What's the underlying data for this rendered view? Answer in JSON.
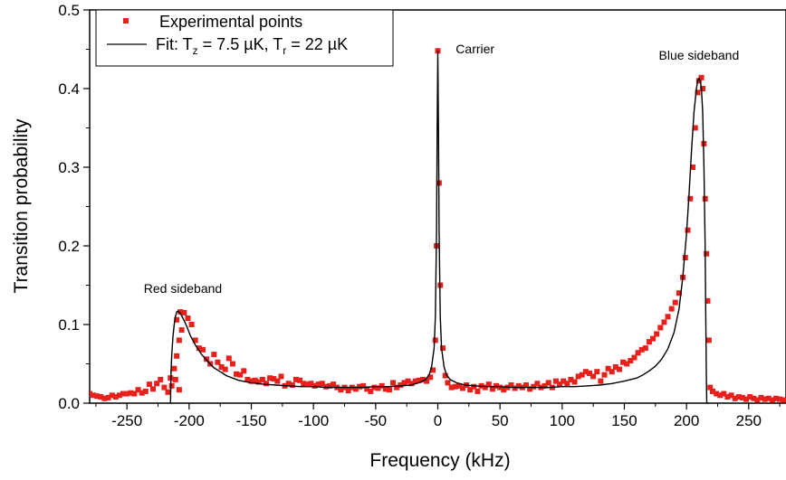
{
  "chart_data": {
    "type": "scatter",
    "title": "",
    "xlabel": "Frequency (kHz)",
    "ylabel": "Transition probability",
    "xlim": [
      -280,
      280
    ],
    "ylim": [
      0,
      0.5
    ],
    "xticks": [
      -250,
      -200,
      -150,
      -100,
      -50,
      0,
      50,
      100,
      150,
      200,
      250
    ],
    "xtick_labels": [
      "-250",
      "-200",
      "-150",
      "-100",
      "-50",
      "0",
      "50",
      "100",
      "150",
      "200",
      "250"
    ],
    "yticks": [
      0,
      0.1,
      0.2,
      0.3,
      0.4,
      0.5
    ],
    "ytick_labels": [
      "0.0",
      "0.1",
      "0.2",
      "0.3",
      "0.4",
      "0.5"
    ],
    "grid": false,
    "legend_position": "top-left",
    "colors": {
      "points": "#e8201b",
      "fit": "#000000"
    },
    "legend": {
      "points": "Experimental points",
      "fit_prefix": "Fit: T",
      "fit_sub1": "z",
      "fit_mid": " = 7.5 µK, T",
      "fit_sub2": "r",
      "fit_end": "  = 22 µK"
    },
    "annotations": [
      {
        "text": "Carrier",
        "x": 30,
        "y": 0.445
      },
      {
        "text": "Blue sideband",
        "x": 210,
        "y": 0.437
      },
      {
        "text": "Red sideband",
        "x": -205,
        "y": 0.14
      }
    ],
    "series": [
      {
        "name": "Experimental points",
        "type": "scatter",
        "points": [
          [
            -280,
            0.012
          ],
          [
            -277,
            0.01
          ],
          [
            -274,
            0.009
          ],
          [
            -271,
            0.008
          ],
          [
            -268,
            0.006
          ],
          [
            -265,
            0.007
          ],
          [
            -262,
            0.01
          ],
          [
            -259,
            0.008
          ],
          [
            -256,
            0.01
          ],
          [
            -253,
            0.012
          ],
          [
            -250,
            0.012
          ],
          [
            -247,
            0.013
          ],
          [
            -244,
            0.012
          ],
          [
            -241,
            0.017
          ],
          [
            -238,
            0.013
          ],
          [
            -235,
            0.015
          ],
          [
            -232,
            0.024
          ],
          [
            -229,
            0.018
          ],
          [
            -226,
            0.025
          ],
          [
            -223,
            0.03
          ],
          [
            -220,
            0.02
          ],
          [
            -217,
            0.014
          ],
          [
            -214,
            0.022
          ],
          [
            -211,
            0.03
          ],
          [
            -208,
            0.017
          ],
          [
            -215,
            0.032
          ],
          [
            -212,
            0.044
          ],
          [
            -210,
            0.06
          ],
          [
            -208,
            0.08
          ],
          [
            -206,
            0.093
          ],
          [
            -210,
            0.106
          ],
          [
            -207,
            0.116
          ],
          [
            -204,
            0.115
          ],
          [
            -201,
            0.108
          ],
          [
            -198,
            0.1
          ],
          [
            -195,
            0.08
          ],
          [
            -192,
            0.07
          ],
          [
            -189,
            0.068
          ],
          [
            -186,
            0.056
          ],
          [
            -183,
            0.05
          ],
          [
            -180,
            0.062
          ],
          [
            -177,
            0.052
          ],
          [
            -174,
            0.046
          ],
          [
            -171,
            0.043
          ],
          [
            -168,
            0.057
          ],
          [
            -165,
            0.05
          ],
          [
            -162,
            0.037
          ],
          [
            -159,
            0.036
          ],
          [
            -156,
            0.041
          ],
          [
            -153,
            0.03
          ],
          [
            -150,
            0.028
          ],
          [
            -147,
            0.029
          ],
          [
            -144,
            0.027
          ],
          [
            -141,
            0.03
          ],
          [
            -138,
            0.025
          ],
          [
            -135,
            0.032
          ],
          [
            -132,
            0.031
          ],
          [
            -129,
            0.028
          ],
          [
            -126,
            0.034
          ],
          [
            -123,
            0.022
          ],
          [
            -120,
            0.025
          ],
          [
            -117,
            0.023
          ],
          [
            -114,
            0.03
          ],
          [
            -111,
            0.029
          ],
          [
            -108,
            0.025
          ],
          [
            -105,
            0.024
          ],
          [
            -102,
            0.025
          ],
          [
            -99,
            0.022
          ],
          [
            -96,
            0.024
          ],
          [
            -93,
            0.025
          ],
          [
            -90,
            0.021
          ],
          [
            -87,
            0.022
          ],
          [
            -84,
            0.024
          ],
          [
            -81,
            0.02
          ],
          [
            -78,
            0.017
          ],
          [
            -75,
            0.02
          ],
          [
            -72,
            0.016
          ],
          [
            -69,
            0.02
          ],
          [
            -66,
            0.018
          ],
          [
            -63,
            0.021
          ],
          [
            -60,
            0.022
          ],
          [
            -57,
            0.018
          ],
          [
            -54,
            0.015
          ],
          [
            -51,
            0.02
          ],
          [
            -48,
            0.019
          ],
          [
            -45,
            0.022
          ],
          [
            -42,
            0.018
          ],
          [
            -39,
            0.017
          ],
          [
            -36,
            0.026
          ],
          [
            -33,
            0.02
          ],
          [
            -30,
            0.023
          ],
          [
            -27,
            0.026
          ],
          [
            -24,
            0.028
          ],
          [
            -21,
            0.025
          ],
          [
            -18,
            0.028
          ],
          [
            -15,
            0.029
          ],
          [
            -12,
            0.03
          ],
          [
            -9,
            0.028
          ],
          [
            -6,
            0.033
          ],
          [
            -4,
            0.042
          ],
          [
            -2,
            0.08
          ],
          [
            -1,
            0.2
          ],
          [
            0,
            0.448
          ],
          [
            1,
            0.28
          ],
          [
            2,
            0.15
          ],
          [
            4,
            0.07
          ],
          [
            6,
            0.035
          ],
          [
            8,
            0.026
          ],
          [
            11,
            0.02
          ],
          [
            14,
            0.021
          ],
          [
            17,
            0.022
          ],
          [
            20,
            0.019
          ],
          [
            23,
            0.023
          ],
          [
            26,
            0.017
          ],
          [
            29,
            0.021
          ],
          [
            32,
            0.015
          ],
          [
            35,
            0.022
          ],
          [
            38,
            0.02
          ],
          [
            41,
            0.024
          ],
          [
            44,
            0.018
          ],
          [
            47,
            0.022
          ],
          [
            50,
            0.02
          ],
          [
            53,
            0.017
          ],
          [
            56,
            0.02
          ],
          [
            59,
            0.023
          ],
          [
            62,
            0.019
          ],
          [
            65,
            0.022
          ],
          [
            68,
            0.02
          ],
          [
            71,
            0.023
          ],
          [
            74,
            0.018
          ],
          [
            77,
            0.021
          ],
          [
            80,
            0.025
          ],
          [
            83,
            0.02
          ],
          [
            86,
            0.022
          ],
          [
            89,
            0.026
          ],
          [
            92,
            0.02
          ],
          [
            95,
            0.028
          ],
          [
            98,
            0.024
          ],
          [
            101,
            0.028
          ],
          [
            104,
            0.025
          ],
          [
            107,
            0.03
          ],
          [
            110,
            0.027
          ],
          [
            113,
            0.034
          ],
          [
            116,
            0.036
          ],
          [
            119,
            0.04
          ],
          [
            122,
            0.038
          ],
          [
            125,
            0.034
          ],
          [
            128,
            0.04
          ],
          [
            131,
            0.028
          ],
          [
            134,
            0.036
          ],
          [
            137,
            0.044
          ],
          [
            140,
            0.04
          ],
          [
            143,
            0.046
          ],
          [
            146,
            0.043
          ],
          [
            149,
            0.052
          ],
          [
            152,
            0.05
          ],
          [
            155,
            0.054
          ],
          [
            158,
            0.058
          ],
          [
            161,
            0.064
          ],
          [
            164,
            0.068
          ],
          [
            167,
            0.07
          ],
          [
            170,
            0.078
          ],
          [
            173,
            0.082
          ],
          [
            176,
            0.088
          ],
          [
            179,
            0.096
          ],
          [
            182,
            0.103
          ],
          [
            185,
            0.11
          ],
          [
            188,
            0.12
          ],
          [
            191,
            0.128
          ],
          [
            194,
            0.14
          ],
          [
            197,
            0.16
          ],
          [
            199,
            0.185
          ],
          [
            201,
            0.22
          ],
          [
            203,
            0.26
          ],
          [
            205,
            0.3
          ],
          [
            207,
            0.35
          ],
          [
            209,
            0.395
          ],
          [
            210,
            0.41
          ],
          [
            212,
            0.414
          ],
          [
            213,
            0.4
          ],
          [
            214,
            0.33
          ],
          [
            215,
            0.26
          ],
          [
            216,
            0.19
          ],
          [
            217,
            0.13
          ],
          [
            218,
            0.08
          ],
          [
            219,
            0.02
          ],
          [
            221,
            0.015
          ],
          [
            224,
            0.012
          ],
          [
            227,
            0.01
          ],
          [
            230,
            0.012
          ],
          [
            233,
            0.008
          ],
          [
            236,
            0.01
          ],
          [
            239,
            0.006
          ],
          [
            242,
            0.008
          ],
          [
            245,
            0.007
          ],
          [
            248,
            0.005
          ],
          [
            251,
            0.008
          ],
          [
            254,
            0.006
          ],
          [
            257,
            0.004
          ],
          [
            260,
            0.007
          ],
          [
            263,
            0.005
          ],
          [
            266,
            0.006
          ],
          [
            269,
            0.004
          ],
          [
            272,
            0.006
          ],
          [
            275,
            0.005
          ],
          [
            278,
            0.004
          ]
        ]
      },
      {
        "name": "Fit: Tz = 7.5 µK, Tr = 22 µK",
        "type": "line",
        "points": [
          [
            -216,
            0.0
          ],
          [
            -215,
            0.0
          ],
          [
            -214.5,
            0.04
          ],
          [
            -214,
            0.06
          ],
          [
            -213,
            0.085
          ],
          [
            -212,
            0.1
          ],
          [
            -211,
            0.11
          ],
          [
            -210,
            0.116
          ],
          [
            -209,
            0.117
          ],
          [
            -207,
            0.114
          ],
          [
            -205,
            0.108
          ],
          [
            -202,
            0.098
          ],
          [
            -199,
            0.086
          ],
          [
            -195,
            0.074
          ],
          [
            -190,
            0.062
          ],
          [
            -185,
            0.053
          ],
          [
            -180,
            0.045
          ],
          [
            -175,
            0.04
          ],
          [
            -170,
            0.035
          ],
          [
            -165,
            0.032
          ],
          [
            -160,
            0.029
          ],
          [
            -150,
            0.026
          ],
          [
            -140,
            0.024
          ],
          [
            -130,
            0.023
          ],
          [
            -120,
            0.022
          ],
          [
            -110,
            0.021
          ],
          [
            -100,
            0.021
          ],
          [
            -90,
            0.02
          ],
          [
            -80,
            0.02
          ],
          [
            -70,
            0.02
          ],
          [
            -60,
            0.02
          ],
          [
            -50,
            0.021
          ],
          [
            -40,
            0.021
          ],
          [
            -30,
            0.022
          ],
          [
            -22,
            0.023
          ],
          [
            -15,
            0.026
          ],
          [
            -10,
            0.03
          ],
          [
            -7,
            0.036
          ],
          [
            -5,
            0.046
          ],
          [
            -3,
            0.07
          ],
          [
            -2,
            0.11
          ],
          [
            -1,
            0.22
          ],
          [
            -0.5,
            0.35
          ],
          [
            0,
            0.448
          ],
          [
            0.5,
            0.35
          ],
          [
            1,
            0.22
          ],
          [
            2,
            0.11
          ],
          [
            3,
            0.07
          ],
          [
            5,
            0.046
          ],
          [
            7,
            0.036
          ],
          [
            10,
            0.03
          ],
          [
            15,
            0.026
          ],
          [
            22,
            0.023
          ],
          [
            30,
            0.022
          ],
          [
            40,
            0.021
          ],
          [
            50,
            0.021
          ],
          [
            60,
            0.02
          ],
          [
            70,
            0.02
          ],
          [
            80,
            0.02
          ],
          [
            90,
            0.02
          ],
          [
            100,
            0.021
          ],
          [
            110,
            0.021
          ],
          [
            120,
            0.022
          ],
          [
            130,
            0.023
          ],
          [
            140,
            0.025
          ],
          [
            150,
            0.028
          ],
          [
            160,
            0.032
          ],
          [
            165,
            0.036
          ],
          [
            170,
            0.041
          ],
          [
            175,
            0.047
          ],
          [
            180,
            0.056
          ],
          [
            185,
            0.069
          ],
          [
            190,
            0.09
          ],
          [
            194,
            0.12
          ],
          [
            197,
            0.16
          ],
          [
            200,
            0.215
          ],
          [
            202,
            0.265
          ],
          [
            204,
            0.32
          ],
          [
            206,
            0.37
          ],
          [
            208,
            0.4
          ],
          [
            209,
            0.41
          ],
          [
            210,
            0.413
          ],
          [
            211,
            0.41
          ],
          [
            212,
            0.4
          ],
          [
            213,
            0.37
          ],
          [
            214,
            0.3
          ],
          [
            215,
            0.2
          ],
          [
            215.5,
            0.11
          ],
          [
            216,
            0.03
          ],
          [
            216.3,
            0.0
          ],
          [
            218,
            0.0
          ]
        ]
      }
    ]
  }
}
